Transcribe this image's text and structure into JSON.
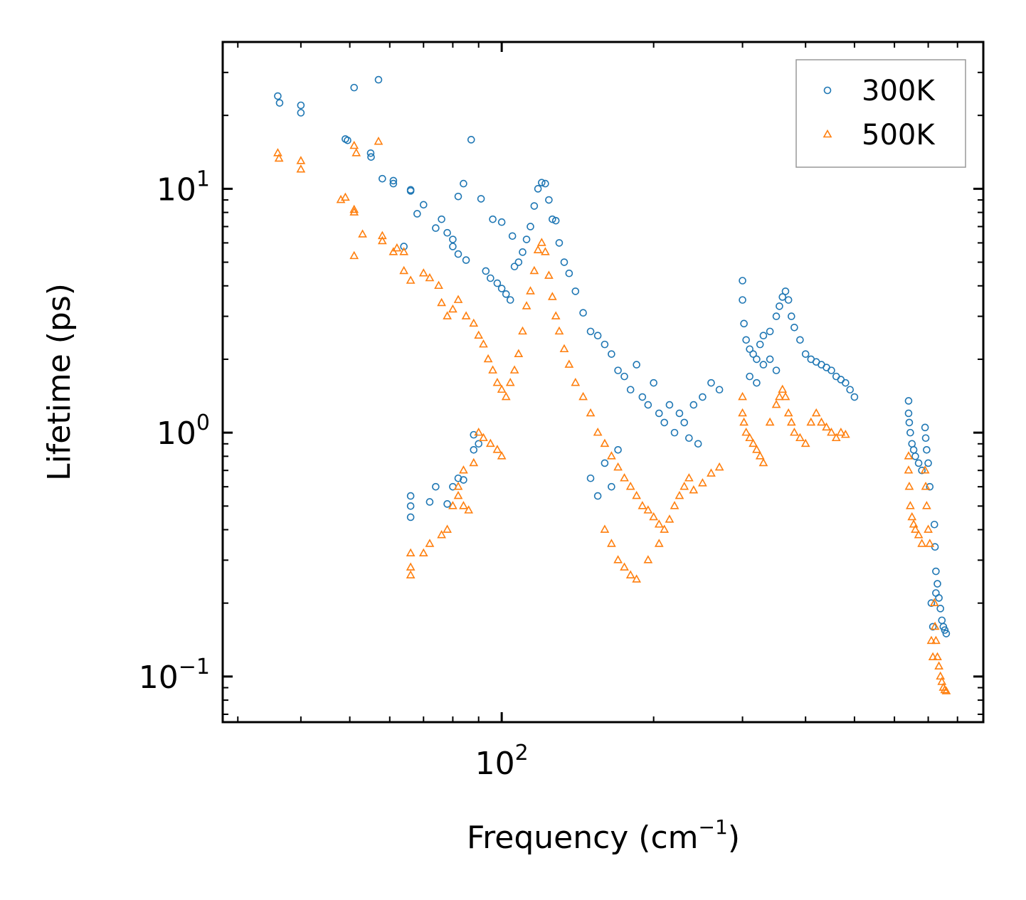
{
  "chart_data": {
    "type": "scatter",
    "title": "",
    "xlabel": {
      "base": "Frequency (cm",
      "sup": "−1",
      "tail": ")"
    },
    "ylabel": "Lifetime (ps)",
    "xscale": "log",
    "yscale": "log",
    "xlim": [
      28,
      900
    ],
    "ylim": [
      0.065,
      40
    ],
    "x_ticks": [
      {
        "value": 100,
        "base": "10",
        "exp": "2"
      }
    ],
    "y_ticks": [
      {
        "value": 0.1,
        "base": "10",
        "exp": "−1"
      },
      {
        "value": 1,
        "base": "10",
        "exp": "0"
      },
      {
        "value": 10,
        "base": "10",
        "exp": "1"
      }
    ],
    "legend_position": "top-right",
    "series": [
      {
        "name": "300K",
        "color": "#1f77b4",
        "marker": "circle",
        "points": [
          [
            36,
            24
          ],
          [
            36.3,
            22.5
          ],
          [
            40,
            22
          ],
          [
            40,
            20.5
          ],
          [
            51,
            26
          ],
          [
            57,
            28
          ],
          [
            49,
            16
          ],
          [
            49.5,
            15.8
          ],
          [
            55,
            14
          ],
          [
            55.1,
            13.5
          ],
          [
            58,
            11
          ],
          [
            61,
            10.8
          ],
          [
            61,
            10.5
          ],
          [
            66,
            9.9
          ],
          [
            70,
            8.6
          ],
          [
            68,
            7.9
          ],
          [
            76,
            7.5
          ],
          [
            74,
            6.9
          ],
          [
            78,
            6.6
          ],
          [
            80,
            6.2
          ],
          [
            80,
            5.8
          ],
          [
            82,
            5.4
          ],
          [
            85,
            5.1
          ],
          [
            64,
            5.8
          ],
          [
            66,
            9.8
          ],
          [
            82,
            9.3
          ],
          [
            84,
            10.5
          ],
          [
            87,
            15.9
          ],
          [
            96,
            7.5
          ],
          [
            100,
            7.3
          ],
          [
            105,
            6.4
          ],
          [
            91,
            9.1
          ],
          [
            93,
            4.6
          ],
          [
            95,
            4.3
          ],
          [
            98,
            4.1
          ],
          [
            100,
            3.9
          ],
          [
            102,
            3.7
          ],
          [
            104,
            3.5
          ],
          [
            106,
            4.8
          ],
          [
            108,
            5.0
          ],
          [
            110,
            5.5
          ],
          [
            112,
            6.2
          ],
          [
            114,
            7.0
          ],
          [
            116,
            8.5
          ],
          [
            118,
            10.0
          ],
          [
            120,
            10.6
          ],
          [
            122,
            10.5
          ],
          [
            124,
            9.0
          ],
          [
            126,
            7.5
          ],
          [
            128,
            7.4
          ],
          [
            130,
            6.0
          ],
          [
            133,
            5.0
          ],
          [
            136,
            4.5
          ],
          [
            140,
            3.8
          ],
          [
            145,
            3.1
          ],
          [
            150,
            2.6
          ],
          [
            155,
            2.5
          ],
          [
            160,
            2.3
          ],
          [
            165,
            2.1
          ],
          [
            170,
            1.8
          ],
          [
            175,
            1.7
          ],
          [
            180,
            1.5
          ],
          [
            185,
            1.9
          ],
          [
            190,
            1.4
          ],
          [
            195,
            1.3
          ],
          [
            200,
            1.6
          ],
          [
            205,
            1.2
          ],
          [
            210,
            1.1
          ],
          [
            215,
            1.3
          ],
          [
            220,
            1.0
          ],
          [
            225,
            1.2
          ],
          [
            230,
            1.1
          ],
          [
            240,
            1.3
          ],
          [
            250,
            1.4
          ],
          [
            260,
            1.6
          ],
          [
            270,
            1.5
          ],
          [
            235,
            0.95
          ],
          [
            245,
            0.9
          ],
          [
            170,
            0.85
          ],
          [
            160,
            0.75
          ],
          [
            150,
            0.65
          ],
          [
            155,
            0.55
          ],
          [
            165,
            0.6
          ],
          [
            66,
            0.55
          ],
          [
            66,
            0.5
          ],
          [
            66,
            0.45
          ],
          [
            72,
            0.52
          ],
          [
            74,
            0.6
          ],
          [
            78,
            0.51
          ],
          [
            80,
            0.6
          ],
          [
            82,
            0.65
          ],
          [
            84,
            0.64
          ],
          [
            88,
            0.85
          ],
          [
            90,
            0.9
          ],
          [
            88,
            0.98
          ],
          [
            300,
            4.2
          ],
          [
            300,
            3.5
          ],
          [
            302,
            2.8
          ],
          [
            305,
            2.4
          ],
          [
            310,
            2.2
          ],
          [
            315,
            2.1
          ],
          [
            320,
            2.0
          ],
          [
            325,
            2.3
          ],
          [
            330,
            2.5
          ],
          [
            340,
            2.6
          ],
          [
            350,
            3.0
          ],
          [
            355,
            3.3
          ],
          [
            360,
            3.6
          ],
          [
            365,
            3.8
          ],
          [
            370,
            3.5
          ],
          [
            375,
            3.0
          ],
          [
            380,
            2.7
          ],
          [
            390,
            2.4
          ],
          [
            400,
            2.1
          ],
          [
            410,
            2.0
          ],
          [
            420,
            1.95
          ],
          [
            430,
            1.9
          ],
          [
            440,
            1.85
          ],
          [
            450,
            1.8
          ],
          [
            460,
            1.7
          ],
          [
            470,
            1.65
          ],
          [
            480,
            1.6
          ],
          [
            490,
            1.5
          ],
          [
            500,
            1.4
          ],
          [
            340,
            2.0
          ],
          [
            350,
            1.8
          ],
          [
            330,
            1.9
          ],
          [
            310,
            1.7
          ],
          [
            320,
            1.6
          ],
          [
            640,
            1.35
          ],
          [
            640,
            1.2
          ],
          [
            642,
            1.1
          ],
          [
            645,
            1.0
          ],
          [
            650,
            0.9
          ],
          [
            655,
            0.85
          ],
          [
            660,
            0.8
          ],
          [
            670,
            0.75
          ],
          [
            680,
            0.7
          ],
          [
            690,
            1.05
          ],
          [
            692,
            0.95
          ],
          [
            695,
            0.85
          ],
          [
            700,
            0.75
          ],
          [
            705,
            0.6
          ],
          [
            720,
            0.42
          ],
          [
            722,
            0.34
          ],
          [
            725,
            0.27
          ],
          [
            730,
            0.24
          ],
          [
            735,
            0.21
          ],
          [
            740,
            0.19
          ],
          [
            745,
            0.17
          ],
          [
            750,
            0.16
          ],
          [
            755,
            0.155
          ],
          [
            760,
            0.15
          ],
          [
            715,
            0.16
          ],
          [
            710,
            0.2
          ],
          [
            725,
            0.22
          ]
        ]
      },
      {
        "name": "500K",
        "color": "#ff7f0e",
        "marker": "triangle",
        "points": [
          [
            36,
            14
          ],
          [
            36.2,
            13.3
          ],
          [
            40,
            13
          ],
          [
            40,
            12
          ],
          [
            51,
            15
          ],
          [
            51.5,
            14
          ],
          [
            57,
            15.6
          ],
          [
            49,
            9.2
          ],
          [
            48,
            9.0
          ],
          [
            51,
            8.2
          ],
          [
            51,
            8.0
          ],
          [
            51,
            5.3
          ],
          [
            53,
            6.5
          ],
          [
            58,
            6.4
          ],
          [
            58,
            6.1
          ],
          [
            62,
            5.7
          ],
          [
            64,
            5.5
          ],
          [
            61,
            5.5
          ],
          [
            64,
            4.6
          ],
          [
            66,
            4.2
          ],
          [
            70,
            4.5
          ],
          [
            72,
            4.3
          ],
          [
            75,
            4.0
          ],
          [
            76,
            3.4
          ],
          [
            78,
            3.0
          ],
          [
            80,
            3.2
          ],
          [
            82,
            3.5
          ],
          [
            85,
            3.0
          ],
          [
            88,
            2.8
          ],
          [
            90,
            2.5
          ],
          [
            92,
            2.3
          ],
          [
            94,
            2.0
          ],
          [
            96,
            1.8
          ],
          [
            98,
            1.6
          ],
          [
            100,
            1.5
          ],
          [
            102,
            1.4
          ],
          [
            104,
            1.6
          ],
          [
            106,
            1.8
          ],
          [
            108,
            2.1
          ],
          [
            110,
            2.6
          ],
          [
            112,
            3.3
          ],
          [
            114,
            3.8
          ],
          [
            116,
            4.6
          ],
          [
            118,
            5.6
          ],
          [
            120,
            6.0
          ],
          [
            122,
            5.5
          ],
          [
            124,
            4.4
          ],
          [
            126,
            3.6
          ],
          [
            128,
            3.0
          ],
          [
            130,
            2.6
          ],
          [
            133,
            2.2
          ],
          [
            136,
            1.9
          ],
          [
            140,
            1.6
          ],
          [
            145,
            1.4
          ],
          [
            150,
            1.2
          ],
          [
            155,
            1.0
          ],
          [
            160,
            0.9
          ],
          [
            165,
            0.8
          ],
          [
            170,
            0.72
          ],
          [
            175,
            0.65
          ],
          [
            180,
            0.6
          ],
          [
            185,
            0.55
          ],
          [
            190,
            0.5
          ],
          [
            195,
            0.48
          ],
          [
            200,
            0.45
          ],
          [
            205,
            0.42
          ],
          [
            210,
            0.4
          ],
          [
            215,
            0.44
          ],
          [
            220,
            0.5
          ],
          [
            225,
            0.55
          ],
          [
            230,
            0.6
          ],
          [
            235,
            0.65
          ],
          [
            240,
            0.58
          ],
          [
            250,
            0.62
          ],
          [
            260,
            0.68
          ],
          [
            270,
            0.72
          ],
          [
            160,
            0.4
          ],
          [
            165,
            0.35
          ],
          [
            170,
            0.3
          ],
          [
            175,
            0.28
          ],
          [
            180,
            0.26
          ],
          [
            185,
            0.25
          ],
          [
            195,
            0.3
          ],
          [
            205,
            0.35
          ],
          [
            90,
            1.0
          ],
          [
            92,
            0.95
          ],
          [
            95,
            0.9
          ],
          [
            98,
            0.85
          ],
          [
            100,
            0.8
          ],
          [
            88,
            0.75
          ],
          [
            84,
            0.7
          ],
          [
            82,
            0.6
          ],
          [
            80,
            0.5
          ],
          [
            78,
            0.4
          ],
          [
            76,
            0.38
          ],
          [
            72,
            0.35
          ],
          [
            70,
            0.32
          ],
          [
            66,
            0.32
          ],
          [
            66,
            0.28
          ],
          [
            66,
            0.26
          ],
          [
            82,
            0.55
          ],
          [
            84,
            0.5
          ],
          [
            86,
            0.48
          ],
          [
            300,
            1.4
          ],
          [
            300,
            1.2
          ],
          [
            302,
            1.1
          ],
          [
            305,
            1.0
          ],
          [
            310,
            0.95
          ],
          [
            315,
            0.9
          ],
          [
            320,
            0.85
          ],
          [
            325,
            0.8
          ],
          [
            330,
            0.75
          ],
          [
            340,
            1.1
          ],
          [
            350,
            1.3
          ],
          [
            355,
            1.4
          ],
          [
            360,
            1.5
          ],
          [
            365,
            1.4
          ],
          [
            370,
            1.2
          ],
          [
            375,
            1.1
          ],
          [
            380,
            1.0
          ],
          [
            390,
            0.95
          ],
          [
            400,
            0.9
          ],
          [
            410,
            1.1
          ],
          [
            420,
            1.2
          ],
          [
            430,
            1.1
          ],
          [
            440,
            1.05
          ],
          [
            450,
            1.0
          ],
          [
            460,
            0.95
          ],
          [
            470,
            1.0
          ],
          [
            480,
            0.98
          ],
          [
            640,
            0.8
          ],
          [
            640,
            0.7
          ],
          [
            642,
            0.6
          ],
          [
            645,
            0.5
          ],
          [
            650,
            0.45
          ],
          [
            655,
            0.42
          ],
          [
            660,
            0.4
          ],
          [
            670,
            0.38
          ],
          [
            680,
            0.35
          ],
          [
            690,
            0.7
          ],
          [
            692,
            0.6
          ],
          [
            695,
            0.5
          ],
          [
            700,
            0.4
          ],
          [
            705,
            0.35
          ],
          [
            720,
            0.2
          ],
          [
            722,
            0.16
          ],
          [
            725,
            0.14
          ],
          [
            730,
            0.12
          ],
          [
            735,
            0.11
          ],
          [
            740,
            0.1
          ],
          [
            745,
            0.095
          ],
          [
            750,
            0.09
          ],
          [
            755,
            0.088
          ],
          [
            760,
            0.087
          ],
          [
            715,
            0.12
          ],
          [
            710,
            0.14
          ]
        ]
      }
    ]
  }
}
